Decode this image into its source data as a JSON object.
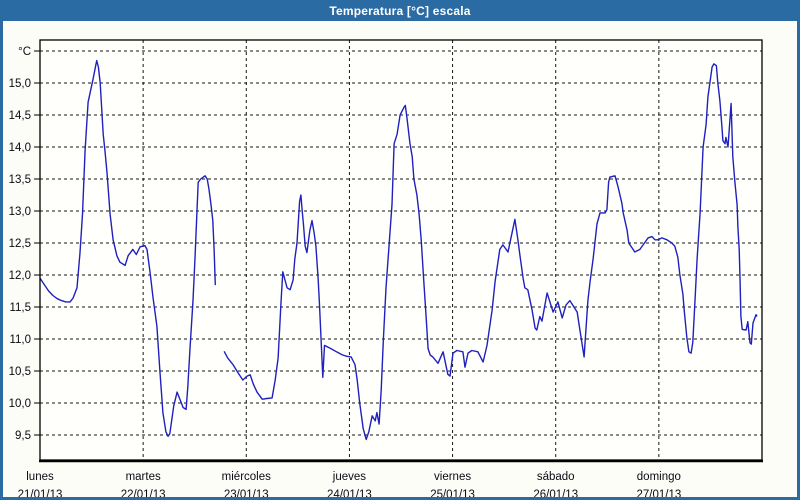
{
  "window": {
    "title": "Temperatura [°C] escala"
  },
  "colors": {
    "frame": "#2a6ba3",
    "title_text": "#ffffff",
    "line": "#2020bf",
    "grid": "#161616",
    "axis": "#000000",
    "plot_bg": "#fffffb",
    "content_bg": "#fdfdf8",
    "label_text": "#0a0a14"
  },
  "chart_data": {
    "type": "line",
    "title": "Temperatura [°C] escala",
    "xlabel": "",
    "ylabel": "°C",
    "legend_position": "none",
    "grid": {
      "style": "dashed",
      "h_step": 0.5,
      "v_step_hours": 24
    },
    "y_axis": {
      "unit": "°C",
      "decimal_separator": ",",
      "ylim_labeled": [
        9.5,
        15.5
      ],
      "ticks": [
        {
          "label": "°C",
          "value": 15.5
        },
        {
          "label": "15,0",
          "value": 15.0
        },
        {
          "label": "14,5",
          "value": 14.5
        },
        {
          "label": "14,0",
          "value": 14.0
        },
        {
          "label": "13,5",
          "value": 13.5
        },
        {
          "label": "13,0",
          "value": 13.0
        },
        {
          "label": "12,5",
          "value": 12.5
        },
        {
          "label": "12,0",
          "value": 12.0
        },
        {
          "label": "11,5",
          "value": 11.5
        },
        {
          "label": "11,0",
          "value": 11.0
        },
        {
          "label": "10,5",
          "value": 10.5
        },
        {
          "label": "10,0",
          "value": 10.0
        },
        {
          "label": "9,5",
          "value": 9.5
        }
      ]
    },
    "x_axis": {
      "hours_total": 168,
      "days": [
        {
          "name": "lunes",
          "date": "21/01/13"
        },
        {
          "name": "martes",
          "date": "22/01/13"
        },
        {
          "name": "miércoles",
          "date": "23/01/13"
        },
        {
          "name": "jueves",
          "date": "24/01/13"
        },
        {
          "name": "viernes",
          "date": "25/01/13"
        },
        {
          "name": "sábado",
          "date": "26/01/13"
        },
        {
          "name": "domingo",
          "date": "27/01/13"
        }
      ]
    },
    "series": [
      {
        "name": "Temperatura [°C]",
        "color": "#2020bf",
        "x_unit": "hours_from_start",
        "points": [
          [
            0,
            11.95
          ],
          [
            1,
            11.85
          ],
          [
            2,
            11.75
          ],
          [
            3,
            11.68
          ],
          [
            4,
            11.63
          ],
          [
            5,
            11.6
          ],
          [
            6,
            11.58
          ],
          [
            7,
            11.58
          ],
          [
            7.7,
            11.64
          ],
          [
            8.6,
            11.8
          ],
          [
            9.3,
            12.35
          ],
          [
            9.9,
            12.95
          ],
          [
            10.5,
            13.95
          ],
          [
            11.2,
            14.7
          ],
          [
            12.3,
            15.05
          ],
          [
            13.2,
            15.35
          ],
          [
            13.6,
            15.25
          ],
          [
            14,
            15.0
          ],
          [
            14.7,
            14.2
          ],
          [
            15.1,
            13.95
          ],
          [
            15.6,
            13.6
          ],
          [
            16.3,
            12.95
          ],
          [
            17,
            12.55
          ],
          [
            17.9,
            12.3
          ],
          [
            18.6,
            12.2
          ],
          [
            19.8,
            12.15
          ],
          [
            20.5,
            12.3
          ],
          [
            21.6,
            12.4
          ],
          [
            22.4,
            12.32
          ],
          [
            23.3,
            12.44
          ],
          [
            24.4,
            12.46
          ],
          [
            24.9,
            12.4
          ],
          [
            25.6,
            12.05
          ],
          [
            26.3,
            11.65
          ],
          [
            27.2,
            11.2
          ],
          [
            27.9,
            10.5
          ],
          [
            28.6,
            9.85
          ],
          [
            29.3,
            9.55
          ],
          [
            29.8,
            9.48
          ],
          [
            30.2,
            9.52
          ],
          [
            30.7,
            9.75
          ],
          [
            31.1,
            9.95
          ],
          [
            31.9,
            10.17
          ],
          [
            32.6,
            10.05
          ],
          [
            33.3,
            9.93
          ],
          [
            34,
            9.9
          ],
          [
            34.4,
            10.25
          ],
          [
            34.9,
            10.85
          ],
          [
            35.6,
            11.6
          ],
          [
            36.1,
            12.3
          ],
          [
            36.8,
            13.45
          ],
          [
            37.4,
            13.5
          ],
          [
            38.4,
            13.55
          ],
          [
            38.9,
            13.5
          ],
          [
            39.3,
            13.35
          ],
          [
            39.8,
            13.1
          ],
          [
            40.2,
            12.85
          ],
          [
            40.5,
            12.4
          ],
          [
            40.8,
            11.85
          ],
          [
            41.8,
            null
          ],
          [
            42.9,
            10.8
          ],
          [
            43.7,
            10.7
          ],
          [
            44.9,
            10.6
          ],
          [
            46.1,
            10.47
          ],
          [
            47.2,
            10.36
          ],
          [
            48.2,
            10.42
          ],
          [
            48.9,
            10.44
          ],
          [
            49.6,
            10.3
          ],
          [
            50.5,
            10.17
          ],
          [
            51.7,
            10.06
          ],
          [
            52.8,
            10.07
          ],
          [
            54,
            10.08
          ],
          [
            54.7,
            10.35
          ],
          [
            55.4,
            10.7
          ],
          [
            56.1,
            11.6
          ],
          [
            56.5,
            12.05
          ],
          [
            57,
            11.92
          ],
          [
            57.5,
            11.8
          ],
          [
            58.2,
            11.77
          ],
          [
            58.9,
            11.92
          ],
          [
            59.3,
            12.25
          ],
          [
            59.8,
            12.5
          ],
          [
            60.4,
            13.15
          ],
          [
            60.7,
            13.25
          ],
          [
            61,
            13.0
          ],
          [
            61.3,
            12.8
          ],
          [
            61.7,
            12.45
          ],
          [
            62.1,
            12.35
          ],
          [
            62.8,
            12.7
          ],
          [
            63.3,
            12.85
          ],
          [
            63.8,
            12.65
          ],
          [
            64.2,
            12.45
          ],
          [
            64.7,
            11.95
          ],
          [
            65,
            11.6
          ],
          [
            65.8,
            10.4
          ],
          [
            66.2,
            10.9
          ],
          [
            67.7,
            10.85
          ],
          [
            69,
            10.8
          ],
          [
            70.4,
            10.75
          ],
          [
            71.4,
            10.73
          ],
          [
            72.4,
            10.72
          ],
          [
            73.3,
            10.6
          ],
          [
            73.8,
            10.36
          ],
          [
            74.4,
            10.0
          ],
          [
            75.2,
            9.6
          ],
          [
            75.9,
            9.43
          ],
          [
            76.5,
            9.55
          ],
          [
            77.3,
            9.8
          ],
          [
            78,
            9.72
          ],
          [
            78.4,
            9.85
          ],
          [
            78.9,
            9.67
          ],
          [
            79.4,
            10.2
          ],
          [
            79.9,
            11.0
          ],
          [
            80.5,
            11.8
          ],
          [
            81.2,
            12.45
          ],
          [
            81.9,
            13.1
          ],
          [
            82.4,
            14.05
          ],
          [
            83.1,
            14.2
          ],
          [
            83.8,
            14.5
          ],
          [
            84.7,
            14.62
          ],
          [
            85,
            14.65
          ],
          [
            85.4,
            14.45
          ],
          [
            86.1,
            14.05
          ],
          [
            86.6,
            13.85
          ],
          [
            87,
            13.5
          ],
          [
            87.7,
            13.25
          ],
          [
            88.2,
            12.95
          ],
          [
            88.7,
            12.55
          ],
          [
            89.3,
            11.9
          ],
          [
            89.8,
            11.4
          ],
          [
            90.3,
            10.85
          ],
          [
            90.8,
            10.75
          ],
          [
            91.4,
            10.72
          ],
          [
            92.6,
            10.62
          ],
          [
            93.8,
            10.8
          ],
          [
            94.9,
            10.45
          ],
          [
            95.4,
            10.42
          ],
          [
            96.1,
            10.78
          ],
          [
            97,
            10.82
          ],
          [
            98.4,
            10.8
          ],
          [
            98.9,
            10.56
          ],
          [
            99.6,
            10.78
          ],
          [
            100.5,
            10.82
          ],
          [
            101.9,
            10.8
          ],
          [
            103.1,
            10.64
          ],
          [
            104,
            10.9
          ],
          [
            105.2,
            11.45
          ],
          [
            105.9,
            11.9
          ],
          [
            107,
            12.4
          ],
          [
            107.7,
            12.47
          ],
          [
            108.9,
            12.36
          ],
          [
            110.5,
            12.87
          ],
          [
            111.2,
            12.55
          ],
          [
            111.7,
            12.3
          ],
          [
            112.4,
            11.95
          ],
          [
            112.8,
            11.8
          ],
          [
            113.5,
            11.77
          ],
          [
            114.5,
            11.45
          ],
          [
            115.2,
            11.17
          ],
          [
            115.6,
            11.14
          ],
          [
            116.3,
            11.35
          ],
          [
            116.8,
            11.28
          ],
          [
            118,
            11.72
          ],
          [
            119.4,
            11.42
          ],
          [
            120.5,
            11.58
          ],
          [
            121.5,
            11.33
          ],
          [
            122.4,
            11.53
          ],
          [
            123.3,
            11.6
          ],
          [
            125,
            11.42
          ],
          [
            125.6,
            11.15
          ],
          [
            126.6,
            10.72
          ],
          [
            127.5,
            11.6
          ],
          [
            128,
            11.9
          ],
          [
            128.7,
            12.25
          ],
          [
            129.6,
            12.8
          ],
          [
            130.3,
            12.97
          ],
          [
            131.5,
            12.97
          ],
          [
            131.9,
            13.02
          ],
          [
            132.3,
            13.45
          ],
          [
            132.6,
            13.53
          ],
          [
            133.8,
            13.55
          ],
          [
            134.5,
            13.38
          ],
          [
            135.4,
            13.12
          ],
          [
            135.7,
            12.97
          ],
          [
            136.6,
            12.7
          ],
          [
            137,
            12.5
          ],
          [
            138.4,
            12.36
          ],
          [
            139.6,
            12.4
          ],
          [
            141.5,
            12.58
          ],
          [
            142.4,
            12.6
          ],
          [
            143.1,
            12.55
          ],
          [
            143.8,
            12.55
          ],
          [
            144.7,
            12.58
          ],
          [
            145.9,
            12.55
          ],
          [
            147,
            12.5
          ],
          [
            147.7,
            12.45
          ],
          [
            148.4,
            12.28
          ],
          [
            148.9,
            12.0
          ],
          [
            149.6,
            11.7
          ],
          [
            149.9,
            11.45
          ],
          [
            150.5,
            11.03
          ],
          [
            151,
            10.8
          ],
          [
            151.5,
            10.78
          ],
          [
            151.9,
            10.95
          ],
          [
            152.4,
            11.6
          ],
          [
            152.9,
            12.25
          ],
          [
            153.6,
            12.97
          ],
          [
            154.3,
            14.0
          ],
          [
            155,
            14.35
          ],
          [
            155.4,
            14.78
          ],
          [
            156.4,
            15.25
          ],
          [
            156.8,
            15.3
          ],
          [
            157.4,
            15.27
          ],
          [
            157.7,
            15.02
          ],
          [
            158.2,
            14.72
          ],
          [
            158.7,
            14.3
          ],
          [
            158.9,
            14.1
          ],
          [
            159.4,
            14.05
          ],
          [
            159.6,
            14.15
          ],
          [
            160.1,
            14.0
          ],
          [
            160.8,
            14.68
          ],
          [
            161.2,
            13.85
          ],
          [
            161.7,
            13.45
          ],
          [
            162.2,
            13.1
          ],
          [
            162.4,
            12.75
          ],
          [
            162.7,
            12.4
          ],
          [
            162.9,
            11.9
          ],
          [
            163.1,
            11.35
          ],
          [
            163.4,
            11.15
          ],
          [
            164.3,
            11.14
          ],
          [
            164.7,
            11.27
          ],
          [
            165.2,
            10.94
          ],
          [
            165.5,
            10.92
          ],
          [
            165.9,
            11.25
          ],
          [
            166.6,
            11.38
          ],
          [
            166.8,
            11.36
          ]
        ]
      }
    ]
  }
}
